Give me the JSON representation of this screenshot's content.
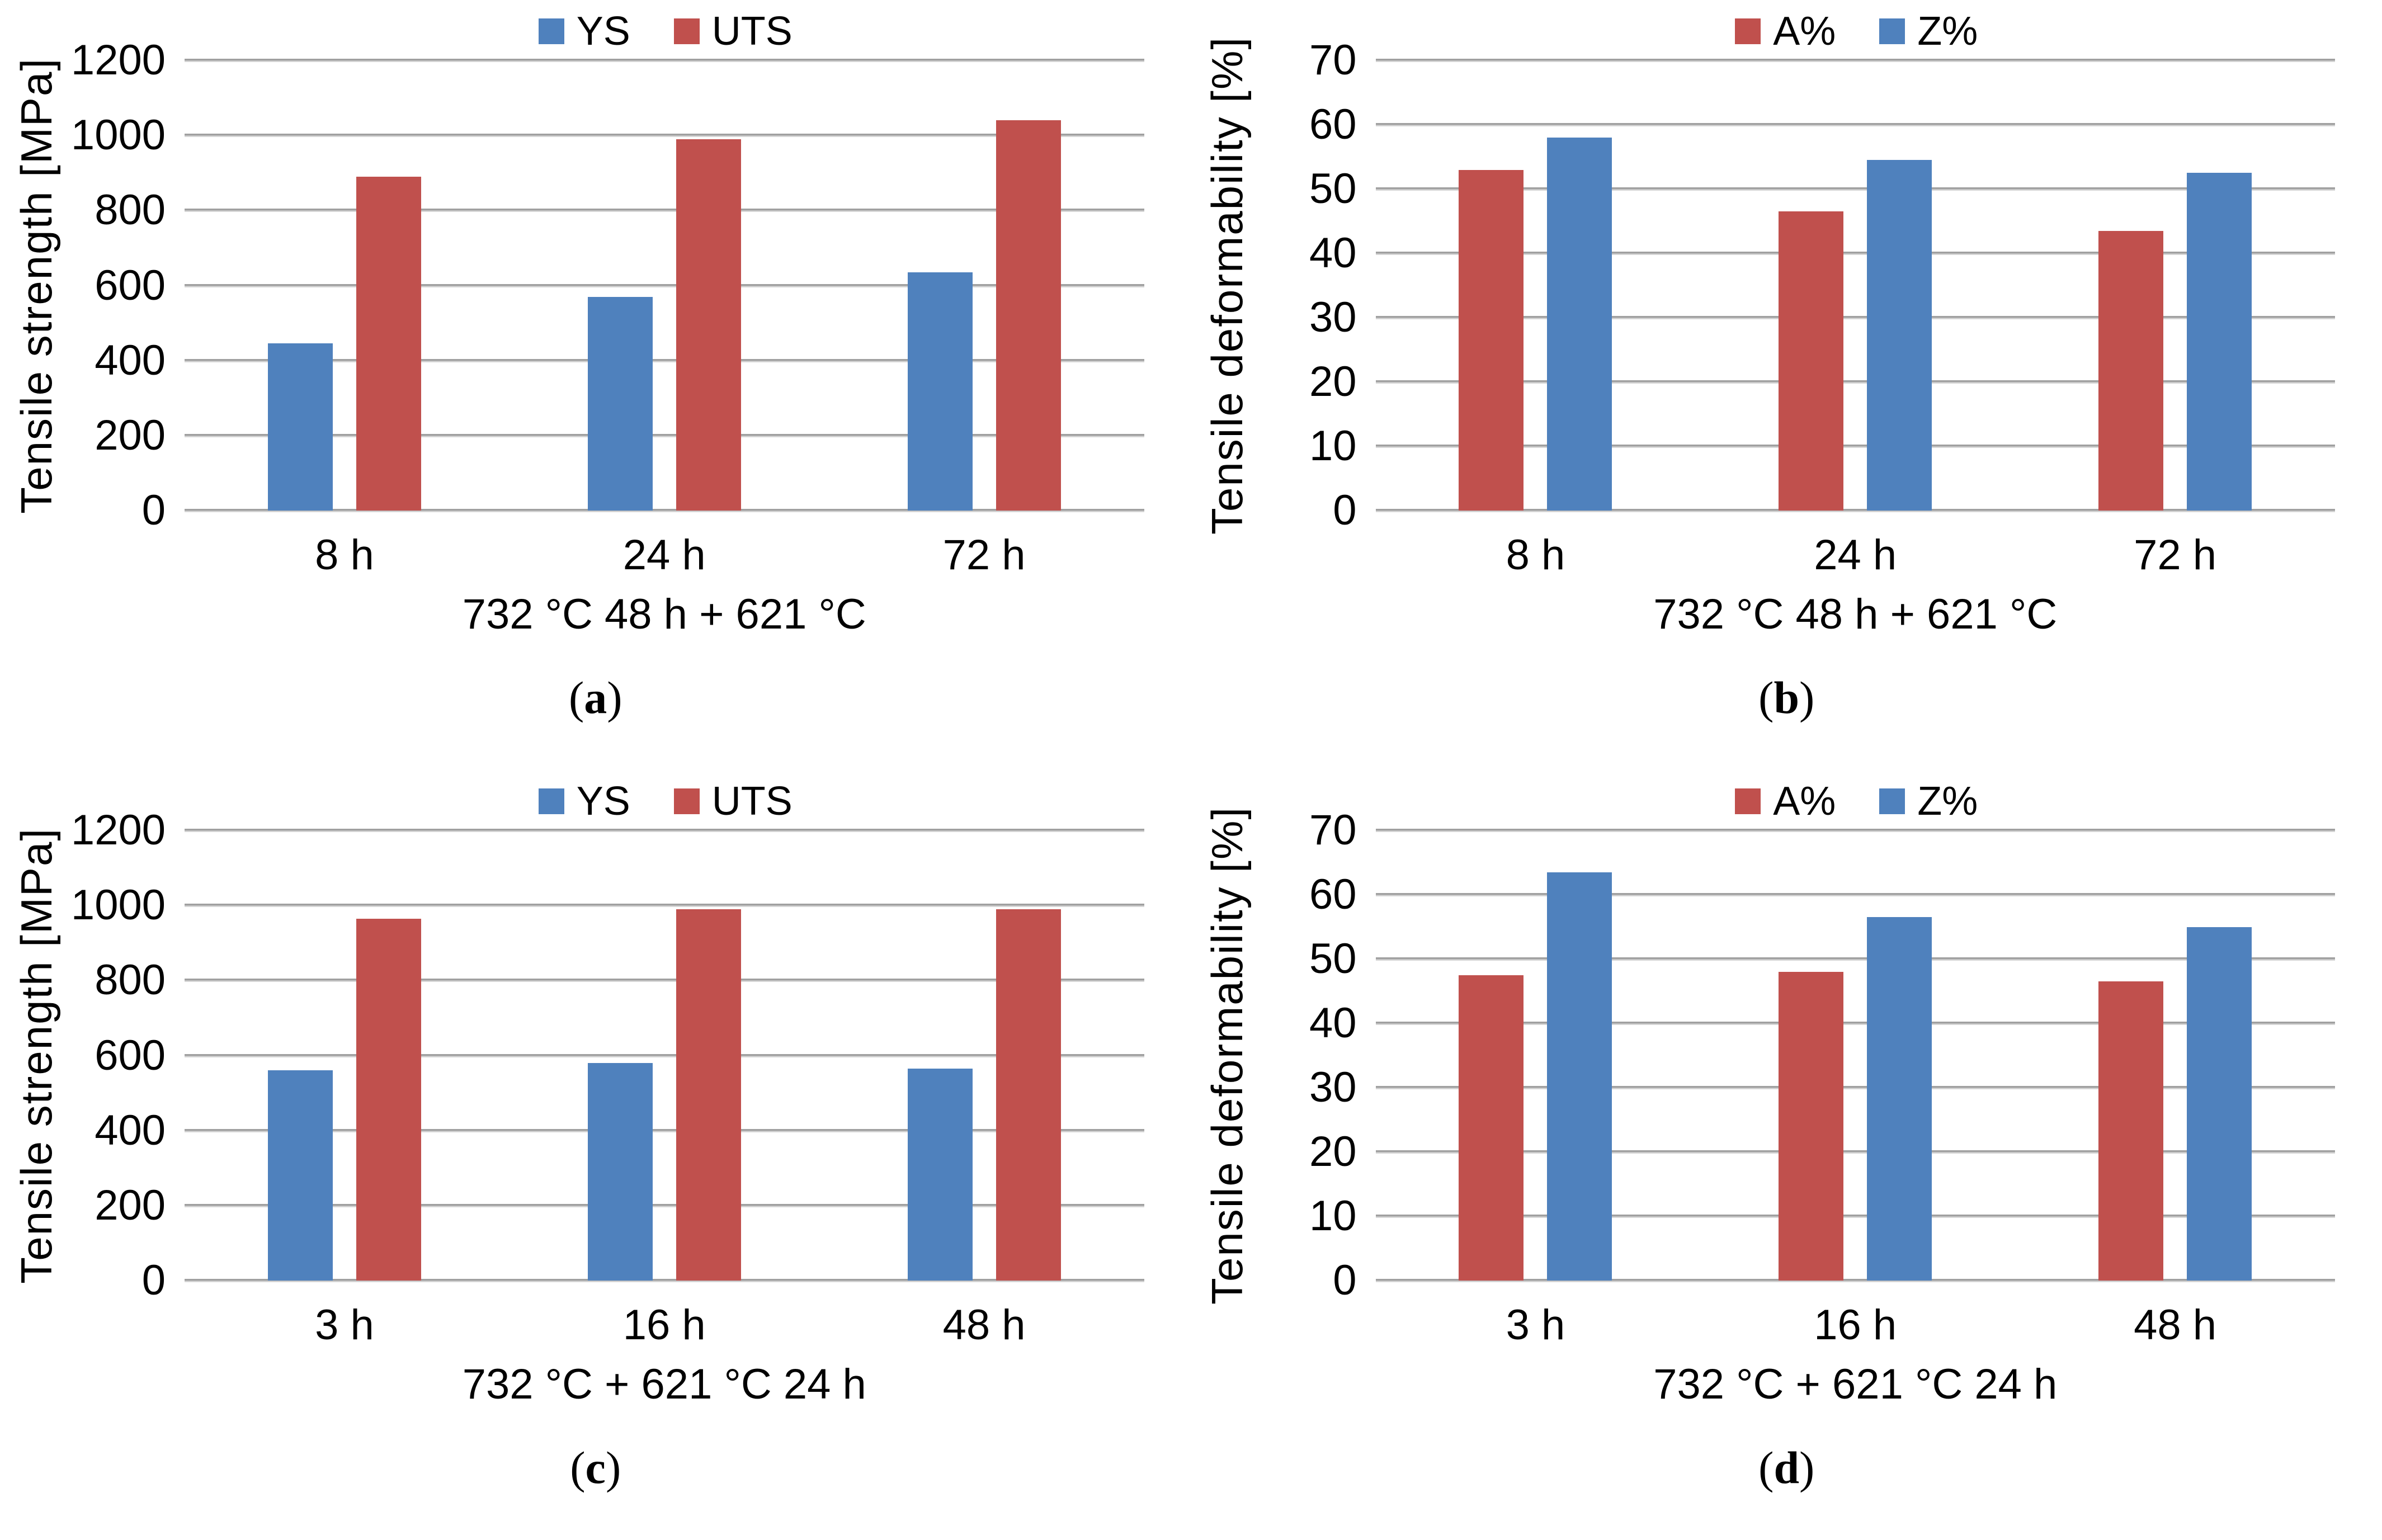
{
  "chart_data": [
    {
      "type": "bar",
      "panel": "a",
      "ylabel": "Tensile strength [MPa]",
      "xlabel": "732 °C 48 h + 621 °C",
      "ylim": [
        0,
        1200
      ],
      "ystep": 200,
      "grid": true,
      "legend_position": "top",
      "categories": [
        "8 h",
        "24 h",
        "72 h"
      ],
      "series": [
        {
          "name": "YS",
          "color": "#4F81BD",
          "values": [
            445,
            570,
            635
          ]
        },
        {
          "name": "UTS",
          "color": "#C0504D",
          "values": [
            890,
            990,
            1040
          ]
        }
      ]
    },
    {
      "type": "bar",
      "panel": "b",
      "ylabel": "Tensile deformability [%]",
      "xlabel": "732 °C 48 h + 621 °C",
      "ylim": [
        0,
        70
      ],
      "ystep": 10,
      "grid": true,
      "legend_position": "top",
      "categories": [
        "8 h",
        "24 h",
        "72 h"
      ],
      "series": [
        {
          "name": "A%",
          "color": "#C0504D",
          "values": [
            53,
            46.5,
            43.5
          ]
        },
        {
          "name": "Z%",
          "color": "#4F81BD",
          "values": [
            58,
            54.5,
            52.5
          ]
        }
      ]
    },
    {
      "type": "bar",
      "panel": "c",
      "ylabel": "Tensile strength [MPa]",
      "xlabel": "732 °C + 621 °C 24 h",
      "ylim": [
        0,
        1200
      ],
      "ystep": 200,
      "grid": true,
      "legend_position": "top",
      "categories": [
        "3 h",
        "16 h",
        "48 h"
      ],
      "series": [
        {
          "name": "YS",
          "color": "#4F81BD",
          "values": [
            560,
            580,
            565
          ]
        },
        {
          "name": "UTS",
          "color": "#C0504D",
          "values": [
            965,
            990,
            990
          ]
        }
      ]
    },
    {
      "type": "bar",
      "panel": "d",
      "ylabel": "Tensile deformability [%]",
      "xlabel": "732 °C + 621 °C 24 h",
      "ylim": [
        0,
        70
      ],
      "ystep": 10,
      "grid": true,
      "legend_position": "top",
      "categories": [
        "3 h",
        "16 h",
        "48 h"
      ],
      "series": [
        {
          "name": "A%",
          "color": "#C0504D",
          "values": [
            47.5,
            48,
            46.5
          ]
        },
        {
          "name": "Z%",
          "color": "#4F81BD",
          "values": [
            63.5,
            56.5,
            55
          ]
        }
      ]
    }
  ],
  "style": {
    "gridline_color": "#A6A6A6",
    "blue": "#4F81BD",
    "red": "#C0504D"
  }
}
